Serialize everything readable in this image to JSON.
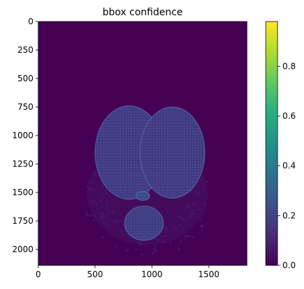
{
  "chart_data": {
    "type": "heatmap",
    "title": "bbox confidence",
    "xlabel": "",
    "ylabel": "",
    "xlim": [
      0,
      1836
    ],
    "ylim": [
      2140,
      0
    ],
    "x_ticks": [
      0,
      500,
      1000,
      1500
    ],
    "y_ticks": [
      0,
      250,
      500,
      750,
      1000,
      1250,
      1500,
      1750,
      2000
    ],
    "colormap": "viridis",
    "colorbar": {
      "vmin": 0.0,
      "vmax": 0.98,
      "ticks": [
        "0.0",
        "0.2",
        "0.4",
        "0.6",
        "0.8"
      ],
      "tick_values": [
        0.0,
        0.2,
        0.4,
        0.6,
        0.8
      ]
    },
    "background_value": 0.0,
    "regions": [
      {
        "name": "left hemisphere",
        "cx": 800,
        "cy": 1150,
        "rx": 300,
        "ry": 410,
        "value": 0.15
      },
      {
        "name": "right hemisphere",
        "cx": 1180,
        "cy": 1150,
        "rx": 285,
        "ry": 400,
        "value": 0.15
      },
      {
        "name": "midline cluster",
        "cx": 920,
        "cy": 1530,
        "rx": 60,
        "ry": 40,
        "value": 0.22
      },
      {
        "name": "brainstem",
        "cx": 930,
        "cy": 1770,
        "rx": 170,
        "ry": 150,
        "value": 0.16
      },
      {
        "name": "outer speckle",
        "cx": 960,
        "cy": 1450,
        "rx": 560,
        "ry": 500,
        "value": 0.1
      }
    ],
    "grid": false,
    "legend": "none"
  }
}
